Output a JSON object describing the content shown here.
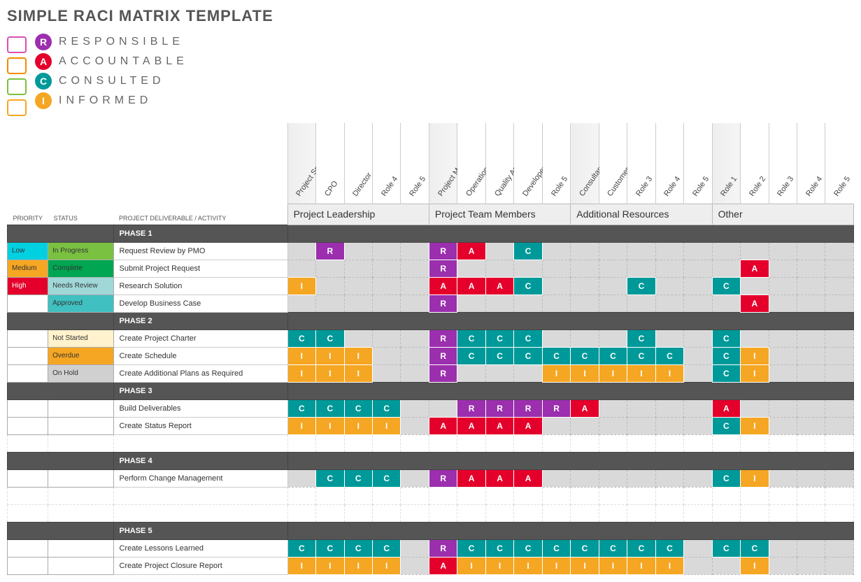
{
  "title": "SIMPLE RACI MATRIX TEMPLATE",
  "legend": [
    {
      "code": "R",
      "label": "RESPONSIBLE",
      "color": "#9b2fae",
      "iconColor": "#d94fb5"
    },
    {
      "code": "A",
      "label": "ACCOUNTABLE",
      "color": "#e4002b",
      "iconColor": "#f28c00"
    },
    {
      "code": "C",
      "label": "CONSULTED",
      "color": "#009999",
      "iconColor": "#7ac142"
    },
    {
      "code": "I",
      "label": "INFORMED",
      "color": "#f5a623",
      "iconColor": "#f5a623"
    }
  ],
  "raciColors": {
    "R": "#9b2fae",
    "A": "#e4002b",
    "C": "#009999",
    "I": "#f5a623"
  },
  "columnHeaders": {
    "priority": "PRIORITY",
    "status": "STATUS",
    "activity": "PROJECT DELIVERABLE / ACTIVITY"
  },
  "priorityColors": {
    "Low": "#00d0e0",
    "Medium": "#f5a623",
    "High": "#e4002b"
  },
  "statusColors": {
    "In Progress": "#7ac142",
    "Complete": "#00a651",
    "Needs Review": "#a0d8d8",
    "Approved": "#40c0c0",
    "Not Started": "#fff2cc",
    "Overdue": "#f5a623",
    "On Hold": "#d0d0d0"
  },
  "groups": [
    {
      "name": "Project Leadership",
      "roles": [
        "Project Sponsor",
        "CPO",
        "Director",
        "Role 4",
        "Role 5"
      ]
    },
    {
      "name": "Project Team Members",
      "roles": [
        "Project Manager",
        "Operations Engineer",
        "Quality Assurance",
        "Developer",
        "Role 5"
      ]
    },
    {
      "name": "Additional Resources",
      "roles": [
        "Consultant",
        "Customer Service",
        "Role 3",
        "Role 4",
        "Role 5"
      ]
    },
    {
      "name": "Other",
      "roles": [
        "Role 1",
        "Role 2",
        "Role 3",
        "Role 4",
        "Role 5"
      ]
    }
  ],
  "phases": [
    {
      "name": "PHASE 1",
      "rows": [
        {
          "priority": "Low",
          "status": "In Progress",
          "activity": "Request Review by PMO",
          "cells": [
            "",
            "R",
            "",
            "",
            "",
            "R",
            "A",
            "",
            "C",
            "",
            "",
            "",
            "",
            "",
            "",
            "",
            "",
            "",
            "",
            ""
          ]
        },
        {
          "priority": "Medium",
          "status": "Complete",
          "activity": "Submit Project Request",
          "cells": [
            "",
            "",
            "",
            "",
            "",
            "R",
            "",
            "",
            "",
            "",
            "",
            "",
            "",
            "",
            "",
            "",
            "A",
            "",
            "",
            ""
          ]
        },
        {
          "priority": "High",
          "status": "Needs Review",
          "activity": "Research Solution",
          "cells": [
            "I",
            "",
            "",
            "",
            "",
            "A",
            "A",
            "A",
            "C",
            "",
            "",
            "",
            "C",
            "",
            "",
            "C",
            "",
            "",
            "",
            ""
          ]
        },
        {
          "priority": "",
          "status": "Approved",
          "activity": "Develop Business Case",
          "cells": [
            "",
            "",
            "",
            "",
            "",
            "R",
            "",
            "",
            "",
            "",
            "",
            "",
            "",
            "",
            "",
            "",
            "A",
            "",
            "",
            ""
          ]
        }
      ]
    },
    {
      "name": "PHASE 2",
      "rows": [
        {
          "priority": "",
          "status": "Not Started",
          "activity": "Create Project Charter",
          "cells": [
            "C",
            "C",
            "",
            "",
            "",
            "R",
            "C",
            "C",
            "C",
            "",
            "",
            "",
            "C",
            "",
            "",
            "C",
            "",
            "",
            "",
            ""
          ]
        },
        {
          "priority": "",
          "status": "Overdue",
          "activity": "Create Schedule",
          "cells": [
            "I",
            "I",
            "I",
            "",
            "",
            "R",
            "C",
            "C",
            "C",
            "C",
            "C",
            "C",
            "C",
            "C",
            "",
            "C",
            "I",
            "",
            "",
            ""
          ]
        },
        {
          "priority": "",
          "status": "On Hold",
          "activity": "Create Additional Plans as Required",
          "cells": [
            "I",
            "I",
            "I",
            "",
            "",
            "R",
            "",
            "",
            "",
            "I",
            "I",
            "I",
            "I",
            "I",
            "",
            "C",
            "I",
            "",
            "",
            ""
          ]
        }
      ]
    },
    {
      "name": "PHASE 3",
      "rows": [
        {
          "priority": "",
          "status": "",
          "activity": "Build Deliverables",
          "cells": [
            "C",
            "C",
            "C",
            "C",
            "",
            "",
            "R",
            "R",
            "R",
            "R",
            "A",
            "",
            "",
            "",
            "",
            "A",
            "",
            "",
            "",
            ""
          ]
        },
        {
          "priority": "",
          "status": "",
          "activity": "Create Status Report",
          "cells": [
            "I",
            "I",
            "I",
            "I",
            "",
            "A",
            "A",
            "A",
            "A",
            "",
            "",
            "",
            "",
            "",
            "",
            "C",
            "I",
            "",
            "",
            ""
          ]
        },
        {
          "blank": true
        }
      ]
    },
    {
      "name": "PHASE 4",
      "rows": [
        {
          "priority": "",
          "status": "",
          "activity": "Perform Change Management",
          "cells": [
            "",
            "C",
            "C",
            "C",
            "",
            "R",
            "A",
            "A",
            "A",
            "",
            "",
            "",
            "",
            "",
            "",
            "C",
            "I",
            "",
            "",
            ""
          ]
        },
        {
          "blank": true
        },
        {
          "blank": true
        }
      ]
    },
    {
      "name": "PHASE 5",
      "rows": [
        {
          "priority": "",
          "status": "",
          "activity": "Create Lessons Learned",
          "cells": [
            "C",
            "C",
            "C",
            "C",
            "",
            "R",
            "C",
            "C",
            "C",
            "C",
            "C",
            "C",
            "C",
            "C",
            "",
            "C",
            "C",
            "",
            "",
            ""
          ]
        },
        {
          "priority": "",
          "status": "",
          "activity": "Create Project Closure Report",
          "cells": [
            "I",
            "I",
            "I",
            "I",
            "",
            "A",
            "I",
            "I",
            "I",
            "I",
            "I",
            "I",
            "I",
            "I",
            "",
            "",
            "I",
            "",
            "",
            ""
          ]
        }
      ]
    }
  ]
}
